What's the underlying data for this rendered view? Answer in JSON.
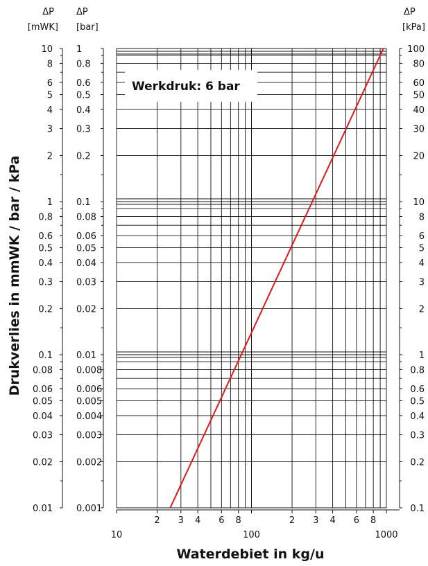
{
  "chart_data": {
    "type": "line",
    "annotation": "Werkdruk: 6 bar",
    "xlabel": "Waterdebiet in kg/u",
    "ylabel": "Drukverlies in mmWK / bar / kPa",
    "x_scale": "log",
    "y_scale": "log",
    "xlim": [
      10,
      1000
    ],
    "ylim_bar": [
      0.001,
      1
    ],
    "grid": true,
    "line_color": "#e0181b",
    "headers": {
      "mwk_symbol": "ΔP",
      "mwk_unit": "[mWK]",
      "bar_symbol": "ΔP",
      "bar_unit": "[bar]",
      "kpa_symbol": "ΔP",
      "kpa_unit": "[kPa]"
    },
    "x_ticks": [
      {
        "v": 10,
        "label": "10",
        "major": true
      },
      {
        "v": 20,
        "label": "2",
        "major": false
      },
      {
        "v": 30,
        "label": "3",
        "major": false
      },
      {
        "v": 40,
        "label": "4",
        "major": false
      },
      {
        "v": 60,
        "label": "6",
        "major": false
      },
      {
        "v": 80,
        "label": "8",
        "major": false
      },
      {
        "v": 100,
        "label": "100",
        "major": true
      },
      {
        "v": 200,
        "label": "2",
        "major": false
      },
      {
        "v": 300,
        "label": "3",
        "major": false
      },
      {
        "v": 400,
        "label": "4",
        "major": false
      },
      {
        "v": 600,
        "label": "6",
        "major": false
      },
      {
        "v": 800,
        "label": "8",
        "major": false
      },
      {
        "v": 1000,
        "label": "1000",
        "major": true
      }
    ],
    "y_ticks": [
      {
        "bar": 1,
        "mwk": "10",
        "barl": "1",
        "kpa": "100"
      },
      {
        "bar": 0.8,
        "mwk": "8",
        "barl": "0.8",
        "kpa": "80"
      },
      {
        "bar": 0.6,
        "mwk": "6",
        "barl": "0.6",
        "kpa": "60"
      },
      {
        "bar": 0.5,
        "mwk": "5",
        "barl": "0.5",
        "kpa": "50"
      },
      {
        "bar": 0.4,
        "mwk": "4",
        "barl": "0.4",
        "kpa": "40"
      },
      {
        "bar": 0.3,
        "mwk": "3",
        "barl": "0.3",
        "kpa": "30"
      },
      {
        "bar": 0.2,
        "mwk": "2",
        "barl": "0.2",
        "kpa": "20"
      },
      {
        "bar": 0.1,
        "mwk": "1",
        "barl": "0.1",
        "kpa": "10"
      },
      {
        "bar": 0.08,
        "mwk": "0.8",
        "barl": "0.08",
        "kpa": "8"
      },
      {
        "bar": 0.06,
        "mwk": "0.6",
        "barl": "0.06",
        "kpa": "6"
      },
      {
        "bar": 0.05,
        "mwk": "0.5",
        "barl": "0.05",
        "kpa": "5"
      },
      {
        "bar": 0.04,
        "mwk": "0.4",
        "barl": "0.04",
        "kpa": "4"
      },
      {
        "bar": 0.03,
        "mwk": "0.3",
        "barl": "0.03",
        "kpa": "3"
      },
      {
        "bar": 0.02,
        "mwk": "0.2",
        "barl": "0.02",
        "kpa": "2"
      },
      {
        "bar": 0.01,
        "mwk": "0.1",
        "barl": "0.01",
        "kpa": "1"
      },
      {
        "bar": 0.008,
        "mwk": "0.08",
        "barl": "0.008",
        "kpa": "0.8"
      },
      {
        "bar": 0.006,
        "mwk": "0.06",
        "barl": "0.006",
        "kpa": "0.6"
      },
      {
        "bar": 0.005,
        "mwk": "0.05",
        "barl": "0.005",
        "kpa": "0.5"
      },
      {
        "bar": 0.004,
        "mwk": "0.04",
        "barl": "0.004",
        "kpa": "0.4"
      },
      {
        "bar": 0.003,
        "mwk": "0.03",
        "barl": "0.003",
        "kpa": "0.3"
      },
      {
        "bar": 0.002,
        "mwk": "0.02",
        "barl": "0.002",
        "kpa": "0.2"
      },
      {
        "bar": 0.001,
        "mwk": "0.01",
        "barl": "0.001",
        "kpa": "0.1"
      }
    ],
    "series": [
      {
        "x": [
          25,
          950
        ],
        "y_bar": [
          0.001,
          1
        ]
      }
    ]
  }
}
